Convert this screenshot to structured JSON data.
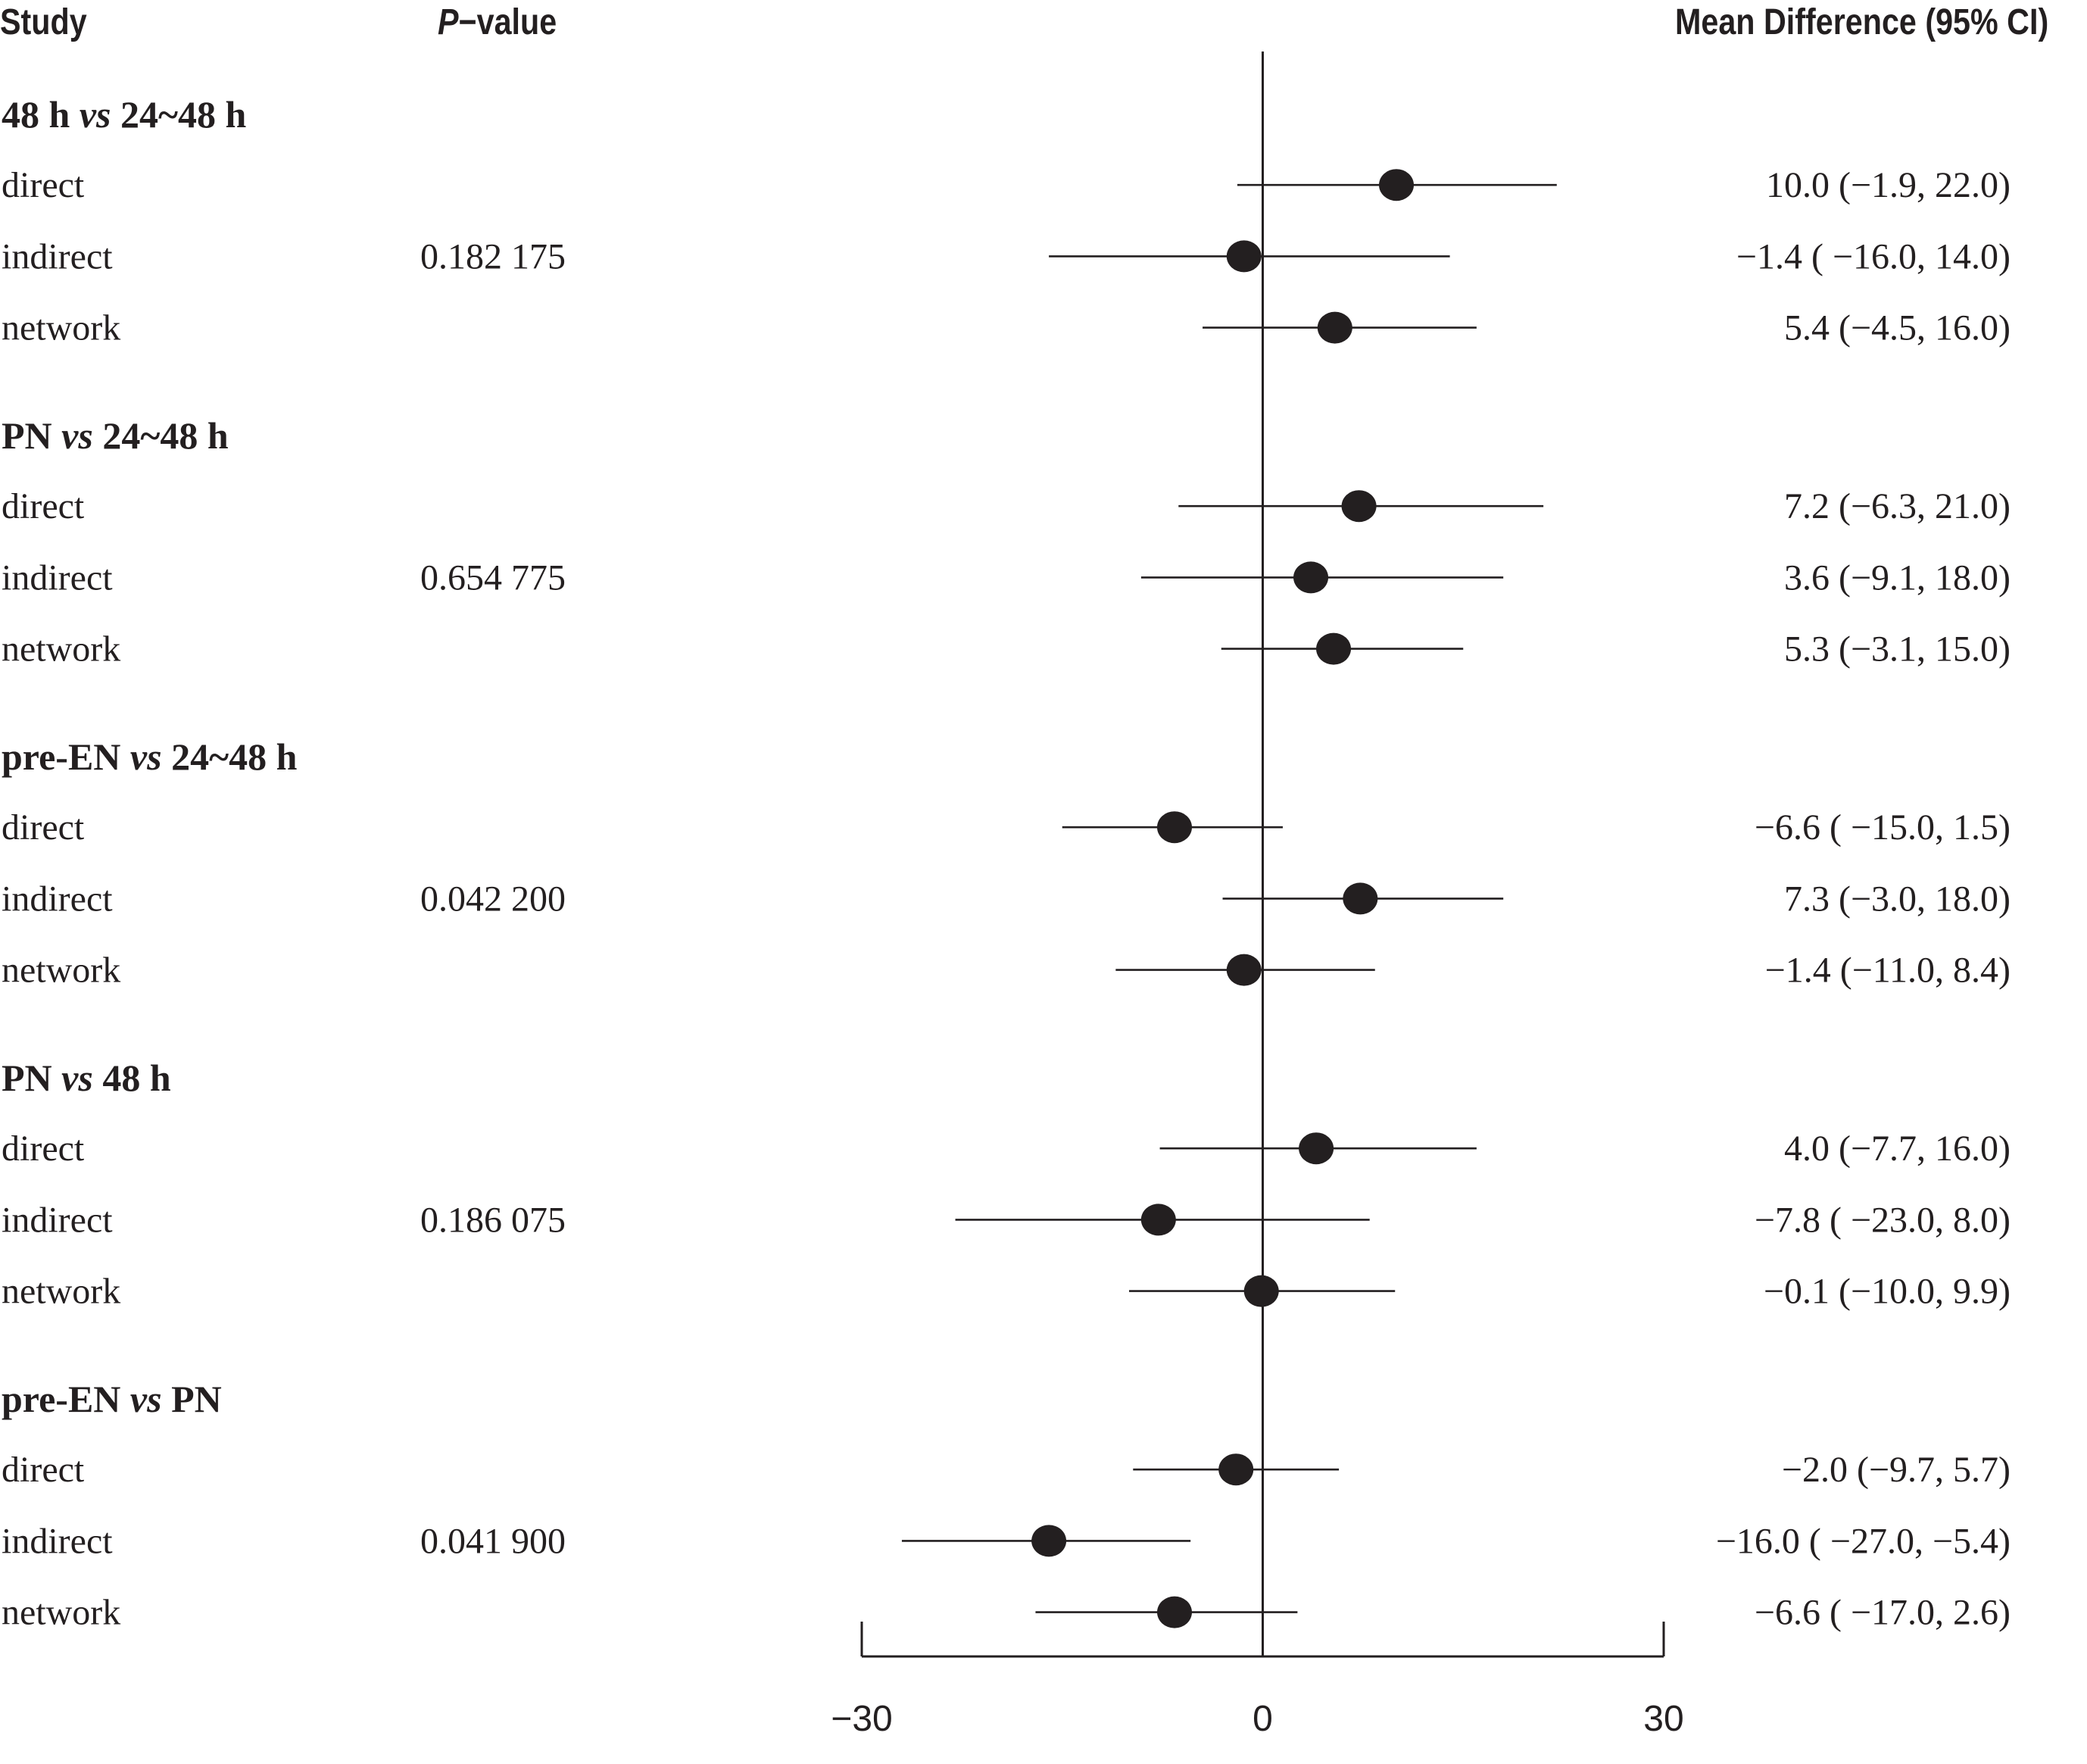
{
  "header": {
    "study": "Study",
    "pvalue_p": "P",
    "pvalue_rest": "−value",
    "mean_difference": "Mean Difference (95% CI)"
  },
  "colors": {
    "ink": "#231f20"
  },
  "chart_data": {
    "type": "forest",
    "title": "",
    "xlabel": "",
    "xlim": [
      -30,
      30
    ],
    "x_ticks": [
      {
        "value": -30,
        "label": "−30"
      },
      {
        "value": 0,
        "label": "0"
      },
      {
        "value": 30,
        "label": "30"
      }
    ],
    "reference_line": 0,
    "groups": [
      {
        "label_parts": [
          "48 h ",
          "vs",
          " 24~48 h"
        ],
        "p_value": "0.182 175",
        "rows": [
          {
            "label": "direct",
            "estimate": 10.0,
            "ci_low": -1.9,
            "ci_high": 22.0,
            "text": "10.0 (−1.9, 22.0)"
          },
          {
            "label": "indirect",
            "estimate": -1.4,
            "ci_low": -16.0,
            "ci_high": 14.0,
            "text": "−1.4 ( −16.0, 14.0)"
          },
          {
            "label": "network",
            "estimate": 5.4,
            "ci_low": -4.5,
            "ci_high": 16.0,
            "text": "5.4 (−4.5, 16.0)"
          }
        ]
      },
      {
        "label_parts": [
          "PN ",
          "vs",
          " 24~48 h"
        ],
        "p_value": "0.654 775",
        "rows": [
          {
            "label": "direct",
            "estimate": 7.2,
            "ci_low": -6.3,
            "ci_high": 21.0,
            "text": "7.2 (−6.3, 21.0)"
          },
          {
            "label": "indirect",
            "estimate": 3.6,
            "ci_low": -9.1,
            "ci_high": 18.0,
            "text": "3.6 (−9.1, 18.0)"
          },
          {
            "label": "network",
            "estimate": 5.3,
            "ci_low": -3.1,
            "ci_high": 15.0,
            "text": "5.3 (−3.1, 15.0)"
          }
        ]
      },
      {
        "label_parts": [
          "pre-EN ",
          "vs",
          " 24~48 h"
        ],
        "p_value": "0.042 200",
        "rows": [
          {
            "label": "direct",
            "estimate": -6.6,
            "ci_low": -15.0,
            "ci_high": 1.5,
            "text": "−6.6 ( −15.0, 1.5)"
          },
          {
            "label": "indirect",
            "estimate": 7.3,
            "ci_low": -3.0,
            "ci_high": 18.0,
            "text": "7.3 (−3.0, 18.0)"
          },
          {
            "label": "network",
            "estimate": -1.4,
            "ci_low": -11.0,
            "ci_high": 8.4,
            "text": "−1.4 (−11.0, 8.4)"
          }
        ]
      },
      {
        "label_parts": [
          "PN ",
          "vs",
          "  48 h"
        ],
        "p_value": "0.186 075",
        "rows": [
          {
            "label": "direct",
            "estimate": 4.0,
            "ci_low": -7.7,
            "ci_high": 16.0,
            "text": "4.0 (−7.7, 16.0)"
          },
          {
            "label": "indirect",
            "estimate": -7.8,
            "ci_low": -23.0,
            "ci_high": 8.0,
            "text": "−7.8 ( −23.0, 8.0)"
          },
          {
            "label": "network",
            "estimate": -0.1,
            "ci_low": -10.0,
            "ci_high": 9.9,
            "text": "−0.1 (−10.0, 9.9)"
          }
        ]
      },
      {
        "label_parts": [
          "pre-EN ",
          "vs",
          " PN"
        ],
        "p_value": "0.041 900",
        "rows": [
          {
            "label": "direct",
            "estimate": -2.0,
            "ci_low": -9.7,
            "ci_high": 5.7,
            "text": "−2.0 (−9.7, 5.7)"
          },
          {
            "label": "indirect",
            "estimate": -16.0,
            "ci_low": -27.0,
            "ci_high": -5.4,
            "text": "−16.0 ( −27.0, −5.4)"
          },
          {
            "label": "network",
            "estimate": -6.6,
            "ci_low": -17.0,
            "ci_high": 2.6,
            "text": "−6.6 ( −17.0, 2.6)"
          }
        ]
      }
    ]
  }
}
